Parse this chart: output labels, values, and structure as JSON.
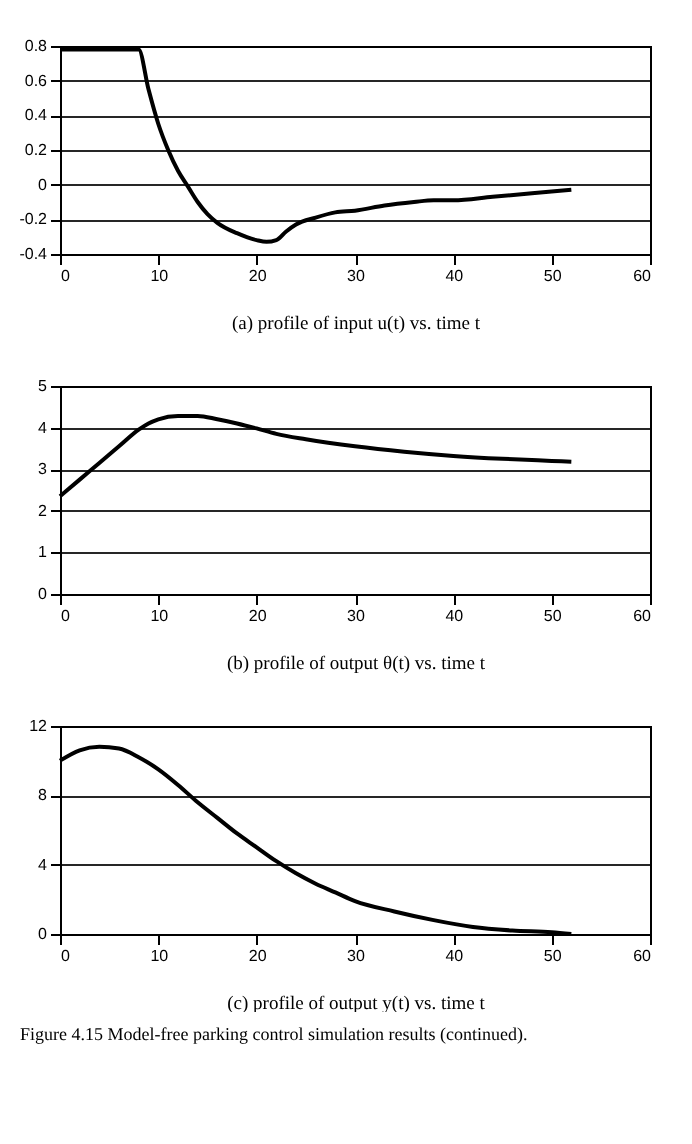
{
  "chart_data": [
    {
      "type": "line",
      "xlabel": "(a) profile of input u(t) vs. time t",
      "xlim": [
        0,
        60
      ],
      "xticks": [
        0,
        10,
        20,
        30,
        40,
        50,
        60
      ],
      "ylim": [
        -0.4,
        0.8
      ],
      "yticks": [
        -0.4,
        -0.2,
        0,
        0.2,
        0.4,
        0.6,
        0.8
      ],
      "grid": "y",
      "series": [
        {
          "color": "#000000",
          "x": [
            0,
            2,
            4,
            6,
            8,
            9,
            10,
            11,
            12,
            13,
            14,
            15,
            16,
            18,
            20,
            21,
            22,
            23,
            24,
            26,
            28,
            30,
            33,
            36,
            38,
            40,
            44,
            48,
            52
          ],
          "values": [
            0.78,
            0.78,
            0.78,
            0.78,
            0.78,
            0.55,
            0.35,
            0.2,
            0.08,
            -0.01,
            -0.1,
            -0.17,
            -0.22,
            -0.28,
            -0.32,
            -0.33,
            -0.32,
            -0.27,
            -0.23,
            -0.19,
            -0.16,
            -0.15,
            -0.12,
            -0.1,
            -0.09,
            -0.09,
            -0.07,
            -0.05,
            -0.03
          ]
        }
      ]
    },
    {
      "type": "line",
      "xlabel": "(b) profile of output θ(t) vs. time t",
      "xlim": [
        0,
        60
      ],
      "xticks": [
        0,
        10,
        20,
        30,
        40,
        50,
        60
      ],
      "ylim": [
        0,
        5
      ],
      "yticks": [
        0,
        1,
        2,
        3,
        4,
        5
      ],
      "grid": "y",
      "series": [
        {
          "color": "#000000",
          "x": [
            0,
            2,
            4,
            6,
            8,
            9,
            10,
            12,
            14,
            16,
            18,
            20,
            22,
            25,
            30,
            35,
            40,
            45,
            50,
            52
          ],
          "values": [
            2.35,
            2.75,
            3.15,
            3.55,
            3.95,
            4.1,
            4.2,
            4.28,
            4.28,
            4.2,
            4.1,
            3.98,
            3.85,
            3.72,
            3.55,
            3.42,
            3.32,
            3.25,
            3.2,
            3.18
          ]
        }
      ]
    },
    {
      "type": "line",
      "xlabel": "(c) profile of output y(t) vs. time t",
      "xlim": [
        0,
        60
      ],
      "xticks": [
        0,
        10,
        20,
        30,
        40,
        50,
        60
      ],
      "ylim": [
        0,
        12
      ],
      "yticks": [
        0,
        4,
        8,
        12
      ],
      "grid": "y",
      "annotations": [
        "Figure 4.15    Model-free parking control simulation results (continued)."
      ],
      "series": [
        {
          "color": "#000000",
          "x": [
            0,
            2,
            4,
            6,
            8,
            10,
            12,
            14,
            16,
            18,
            20,
            22,
            24,
            26,
            28,
            30,
            34,
            38,
            42,
            46,
            50,
            52
          ],
          "values": [
            10,
            10.6,
            10.8,
            10.7,
            10.2,
            9.5,
            8.6,
            7.6,
            6.7,
            5.8,
            5.0,
            4.2,
            3.5,
            2.9,
            2.4,
            1.9,
            1.3,
            0.8,
            0.4,
            0.2,
            0.1,
            0
          ]
        }
      ]
    }
  ]
}
